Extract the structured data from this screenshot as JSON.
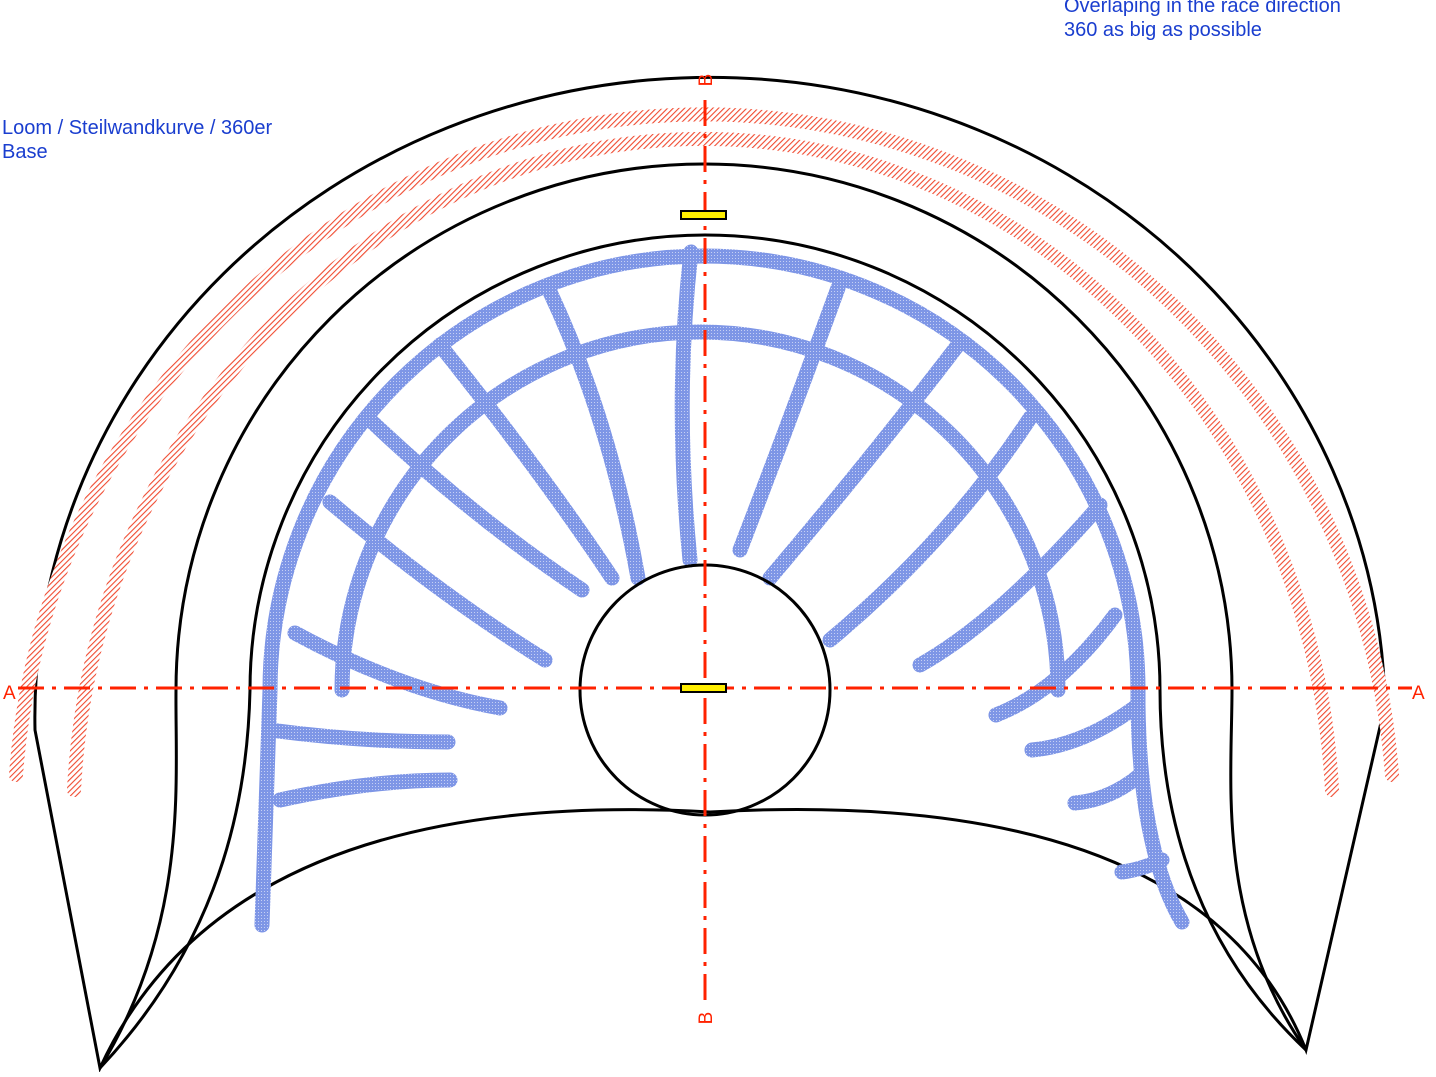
{
  "colors": {
    "outline": "#000000",
    "axis": "#ff2200",
    "hatch": "#f04a30",
    "mesh": "#7e96e6",
    "marker_fill": "#ffee00",
    "note_text": "#1a3ecf"
  },
  "annotations": {
    "left": {
      "line1": "Loom / Steilwandkurve / 360er",
      "line2": "Base"
    },
    "right": {
      "line1": "Overlaping in the race direction",
      "line2": "360 as big as possible"
    }
  },
  "axes": {
    "horizontal": {
      "label_left": "A",
      "label_right": "A"
    },
    "vertical": {
      "label_top": "B",
      "label_bottom": "B"
    }
  }
}
